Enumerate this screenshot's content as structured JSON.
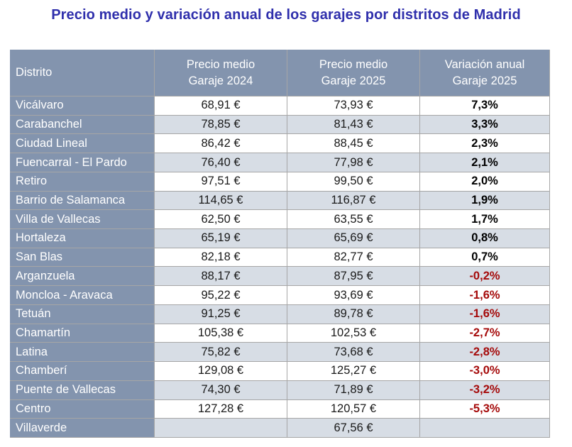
{
  "title": "Precio medio y variación anual de los garajes por distritos de Madrid",
  "colors": {
    "title_text": "#2F2FAC",
    "header_bg": "#8394AE",
    "header_text": "#FFFFFF",
    "row_bg": "#FFFFFF",
    "alt_row_bg": "#D7DDE5",
    "gridline": "#A6A6A6",
    "positive_variation_text": "#000000",
    "negative_variation_text": "#A50A0A"
  },
  "table_display": {
    "headers": [
      "Distrito",
      "Precio medio\nGaraje 2024",
      "Precio medio\nGaraje 2025",
      "Variación anual\nGaraje 2025"
    ]
  },
  "chart_data": {
    "type": "table",
    "title": "Precio medio y variación anual de los garajes por distritos de Madrid",
    "columns": [
      "Distrito",
      "Precio medio Garaje 2024",
      "Precio medio Garaje 2025",
      "Variación anual Garaje 2025"
    ],
    "rows": [
      {
        "district": "Vicálvaro",
        "price_2024": "68,91 €",
        "price_2025": "73,93 €",
        "variation": "7,3%",
        "variation_sign": "positive",
        "price_2024_num": 68.91,
        "price_2025_num": 73.93,
        "variation_pct": 7.3
      },
      {
        "district": "Carabanchel",
        "price_2024": "78,85 €",
        "price_2025": "81,43 €",
        "variation": "3,3%",
        "variation_sign": "positive",
        "price_2024_num": 78.85,
        "price_2025_num": 81.43,
        "variation_pct": 3.3
      },
      {
        "district": "Ciudad Lineal",
        "price_2024": "86,42 €",
        "price_2025": "88,45 €",
        "variation": "2,3%",
        "variation_sign": "positive",
        "price_2024_num": 86.42,
        "price_2025_num": 88.45,
        "variation_pct": 2.3
      },
      {
        "district": "Fuencarral - El Pardo",
        "price_2024": "76,40 €",
        "price_2025": "77,98 €",
        "variation": "2,1%",
        "variation_sign": "positive",
        "price_2024_num": 76.4,
        "price_2025_num": 77.98,
        "variation_pct": 2.1
      },
      {
        "district": "Retiro",
        "price_2024": "97,51 €",
        "price_2025": "99,50 €",
        "variation": "2,0%",
        "variation_sign": "positive",
        "price_2024_num": 97.51,
        "price_2025_num": 99.5,
        "variation_pct": 2.0
      },
      {
        "district": "Barrio de Salamanca",
        "price_2024": "114,65 €",
        "price_2025": "116,87 €",
        "variation": "1,9%",
        "variation_sign": "positive",
        "price_2024_num": 114.65,
        "price_2025_num": 116.87,
        "variation_pct": 1.9
      },
      {
        "district": "Villa de Vallecas",
        "price_2024": "62,50 €",
        "price_2025": "63,55 €",
        "variation": "1,7%",
        "variation_sign": "positive",
        "price_2024_num": 62.5,
        "price_2025_num": 63.55,
        "variation_pct": 1.7
      },
      {
        "district": "Hortaleza",
        "price_2024": "65,19 €",
        "price_2025": "65,69 €",
        "variation": "0,8%",
        "variation_sign": "positive",
        "price_2024_num": 65.19,
        "price_2025_num": 65.69,
        "variation_pct": 0.8
      },
      {
        "district": "San Blas",
        "price_2024": "82,18 €",
        "price_2025": "82,77 €",
        "variation": "0,7%",
        "variation_sign": "positive",
        "price_2024_num": 82.18,
        "price_2025_num": 82.77,
        "variation_pct": 0.7
      },
      {
        "district": "Arganzuela",
        "price_2024": "88,17 €",
        "price_2025": "87,95 €",
        "variation": "-0,2%",
        "variation_sign": "negative",
        "price_2024_num": 88.17,
        "price_2025_num": 87.95,
        "variation_pct": -0.2
      },
      {
        "district": "Moncloa - Aravaca",
        "price_2024": "95,22 €",
        "price_2025": "93,69 €",
        "variation": "-1,6%",
        "variation_sign": "negative",
        "price_2024_num": 95.22,
        "price_2025_num": 93.69,
        "variation_pct": -1.6
      },
      {
        "district": "Tetuán",
        "price_2024": "91,25 €",
        "price_2025": "89,78 €",
        "variation": "-1,6%",
        "variation_sign": "negative",
        "price_2024_num": 91.25,
        "price_2025_num": 89.78,
        "variation_pct": -1.6
      },
      {
        "district": "Chamartín",
        "price_2024": "105,38 €",
        "price_2025": "102,53 €",
        "variation": "-2,7%",
        "variation_sign": "negative",
        "price_2024_num": 105.38,
        "price_2025_num": 102.53,
        "variation_pct": -2.7
      },
      {
        "district": "Latina",
        "price_2024": "75,82 €",
        "price_2025": "73,68 €",
        "variation": "-2,8%",
        "variation_sign": "negative",
        "price_2024_num": 75.82,
        "price_2025_num": 73.68,
        "variation_pct": -2.8
      },
      {
        "district": "Chamberí",
        "price_2024": "129,08 €",
        "price_2025": "125,27 €",
        "variation": "-3,0%",
        "variation_sign": "negative",
        "price_2024_num": 129.08,
        "price_2025_num": 125.27,
        "variation_pct": -3.0
      },
      {
        "district": "Puente de Vallecas",
        "price_2024": "74,30 €",
        "price_2025": "71,89 €",
        "variation": "-3,2%",
        "variation_sign": "negative",
        "price_2024_num": 74.3,
        "price_2025_num": 71.89,
        "variation_pct": -3.2
      },
      {
        "district": "Centro",
        "price_2024": "127,28 €",
        "price_2025": "120,57 €",
        "variation": "-5,3%",
        "variation_sign": "negative",
        "price_2024_num": 127.28,
        "price_2025_num": 120.57,
        "variation_pct": -5.3
      },
      {
        "district": "Villaverde",
        "price_2024": "",
        "price_2025": "67,56 €",
        "variation": "",
        "variation_sign": "none",
        "price_2024_num": null,
        "price_2025_num": 67.56,
        "variation_pct": null
      }
    ]
  }
}
